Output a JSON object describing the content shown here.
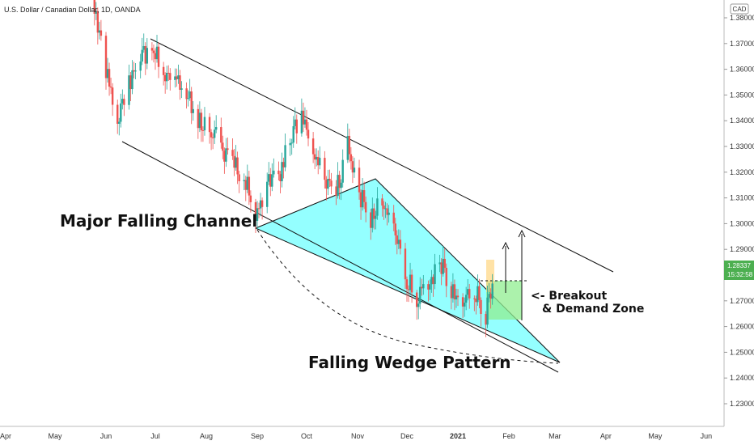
{
  "header": {
    "symbol_label": "U.S. Dollar / Canadian Dollar, 1D, OANDA"
  },
  "price_axis": {
    "currency_label": "CAD",
    "last_price": "1.28337",
    "countdown": "15:32:58",
    "last_price_color": "#4caf50"
  },
  "colors": {
    "up": "#26a69a",
    "down": "#ef5350",
    "wedge_fill": "#00ffff",
    "demand_zone": "#90ee90",
    "breakout_box": "#ffd580"
  },
  "annotations": {
    "channel_label": "Major Falling Channel",
    "wedge_label": "Falling Wedge Pattern",
    "breakout_label_1": "<- Breakout",
    "breakout_label_2": "& Demand Zone"
  },
  "chart_data": {
    "type": "candlestick",
    "title": "U.S. Dollar / Canadian Dollar, 1D, OANDA",
    "y_axis_ticks": [
      "1.38000",
      "1.37000",
      "1.36000",
      "1.35000",
      "1.34000",
      "1.33000",
      "1.32000",
      "1.31000",
      "1.30000",
      "1.29000",
      "1.28000",
      "1.27000",
      "1.26000",
      "1.25000",
      "1.24000",
      "1.23000"
    ],
    "x_axis_ticks": [
      "Apr",
      "May",
      "Jun",
      "Jul",
      "Aug",
      "Sep",
      "Oct",
      "Nov",
      "Dec",
      "2021",
      "Feb",
      "Mar",
      "Apr",
      "May",
      "Jun"
    ],
    "ylim": [
      1.2188,
      1.3847
    ],
    "approx_close_path": [
      {
        "date": "2020-05-25",
        "close": 1.385
      },
      {
        "date": "2020-06-01",
        "close": 1.36
      },
      {
        "date": "2020-06-08",
        "close": 1.341
      },
      {
        "date": "2020-06-15",
        "close": 1.355
      },
      {
        "date": "2020-06-22",
        "close": 1.363
      },
      {
        "date": "2020-06-29",
        "close": 1.369
      },
      {
        "date": "2020-07-06",
        "close": 1.36
      },
      {
        "date": "2020-07-13",
        "close": 1.357
      },
      {
        "date": "2020-07-20",
        "close": 1.35
      },
      {
        "date": "2020-07-27",
        "close": 1.34
      },
      {
        "date": "2020-08-03",
        "close": 1.339
      },
      {
        "date": "2020-08-10",
        "close": 1.33
      },
      {
        "date": "2020-08-17",
        "close": 1.323
      },
      {
        "date": "2020-08-24",
        "close": 1.318
      },
      {
        "date": "2020-08-31",
        "close": 1.305
      },
      {
        "date": "2020-09-07",
        "close": 1.315
      },
      {
        "date": "2020-09-14",
        "close": 1.318
      },
      {
        "date": "2020-09-21",
        "close": 1.334
      },
      {
        "date": "2020-09-28",
        "close": 1.34
      },
      {
        "date": "2020-10-05",
        "close": 1.328
      },
      {
        "date": "2020-10-12",
        "close": 1.318
      },
      {
        "date": "2020-10-19",
        "close": 1.312
      },
      {
        "date": "2020-10-26",
        "close": 1.33
      },
      {
        "date": "2020-11-02",
        "close": 1.312
      },
      {
        "date": "2020-11-09",
        "close": 1.302
      },
      {
        "date": "2020-11-16",
        "close": 1.31
      },
      {
        "date": "2020-11-23",
        "close": 1.3
      },
      {
        "date": "2020-11-30",
        "close": 1.28
      },
      {
        "date": "2020-12-07",
        "close": 1.272
      },
      {
        "date": "2020-12-14",
        "close": 1.278
      },
      {
        "date": "2020-12-21",
        "close": 1.285
      },
      {
        "date": "2020-12-28",
        "close": 1.274
      },
      {
        "date": "2021-01-04",
        "close": 1.271
      },
      {
        "date": "2021-01-11",
        "close": 1.275
      },
      {
        "date": "2021-01-18",
        "close": 1.265
      },
      {
        "date": "2021-01-25",
        "close": 1.283
      }
    ],
    "overlays": [
      {
        "kind": "upper channel line",
        "from": {
          "date": "2020-06-29",
          "price": 1.372
        },
        "to": {
          "date": "2021-04-20",
          "price": 1.281
        }
      },
      {
        "kind": "lower channel line",
        "from": {
          "date": "2020-06-08",
          "price": 1.332
        },
        "to": {
          "date": "2021-03-10",
          "price": 1.24
        }
      },
      {
        "kind": "falling wedge",
        "vertices": [
          {
            "date": "2020-09-01",
            "price": 1.299
          },
          {
            "date": "2020-11-16",
            "price": 1.318
          },
          {
            "date": "2021-03-10",
            "price": 1.246
          }
        ]
      },
      {
        "kind": "demand zone",
        "price_top": 1.279,
        "price_bottom": 1.263,
        "from": "2021-01-20",
        "to": "2021-02-22"
      }
    ]
  }
}
